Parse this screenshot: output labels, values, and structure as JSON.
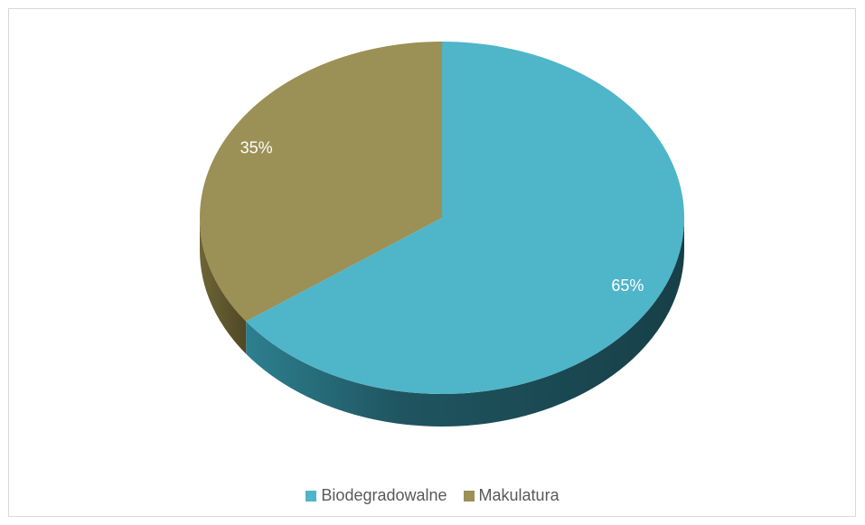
{
  "chart_data": {
    "type": "pie",
    "style": "3d",
    "categories": [
      "Biodegradowalne",
      "Makulatura"
    ],
    "values": [
      65,
      35
    ],
    "data_labels": [
      "65%",
      "35%"
    ],
    "colors": [
      "#4fb5c9",
      "#9b9055"
    ],
    "title": "",
    "legend_position": "bottom"
  },
  "legend": {
    "items": [
      {
        "label": "Biodegradowalne",
        "color": "#4fb5c9"
      },
      {
        "label": "Makulatura",
        "color": "#9b9055"
      }
    ]
  }
}
